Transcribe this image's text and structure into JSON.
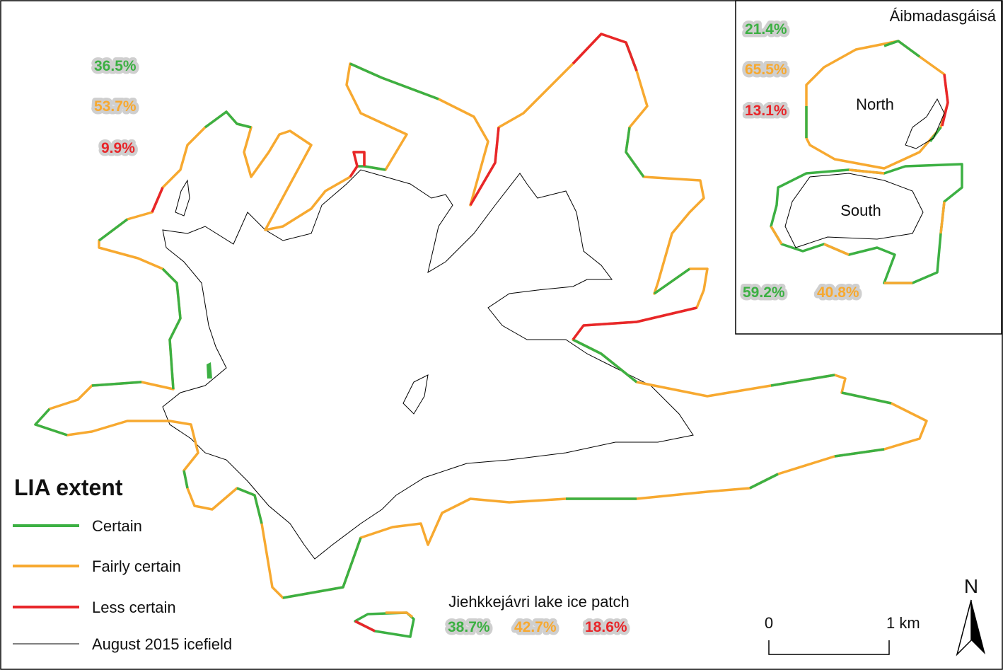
{
  "legend": {
    "title": "LIA extent",
    "items": [
      "Certain",
      "Fairly certain",
      "Less certain",
      "August 2015 icefield"
    ]
  },
  "main_percentages": [
    "36.5%",
    "53.7%",
    "9.9%"
  ],
  "inset": {
    "title": "Áibmadasgáisá",
    "north": {
      "label": "North",
      "percentages": [
        "21.4%",
        "65.5%",
        "13.1%"
      ]
    },
    "south": {
      "label": "South",
      "percentages": [
        "59.2%",
        "40.8%"
      ]
    }
  },
  "lake": {
    "label": "Jiehkkejávri lake ice patch",
    "percentages": [
      "38.7%",
      "42.7%",
      "18.6%"
    ]
  },
  "scale": {
    "labels": [
      "0",
      "1 km"
    ]
  },
  "north_arrow": "N"
}
